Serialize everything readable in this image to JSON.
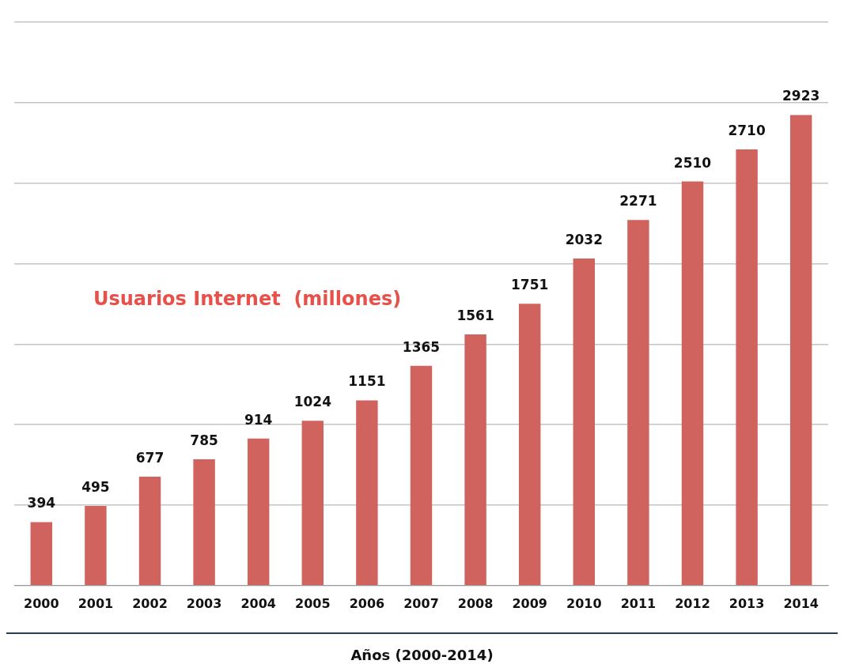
{
  "chart_data": {
    "type": "bar",
    "title": "Usuarios Internet  (millones)",
    "xlabel": "Años (2000-2014)",
    "categories": [
      "2000",
      "2001",
      "2002",
      "2003",
      "2004",
      "2005",
      "2006",
      "2007",
      "2008",
      "2009",
      "2010",
      "2011",
      "2012",
      "2013",
      "2014"
    ],
    "values": [
      394,
      495,
      677,
      785,
      914,
      1024,
      1151,
      1365,
      1561,
      1751,
      2032,
      2271,
      2510,
      2710,
      2923
    ],
    "color": "#d0635d",
    "ylim": [
      0,
      3500
    ],
    "yticks": [
      {
        "value": 0,
        "label": null
      },
      {
        "value": 500,
        "label": null
      },
      {
        "value": 1000,
        "label": null
      },
      {
        "value": 1500,
        "label": null
      },
      {
        "value": 2000,
        "label": null
      },
      {
        "value": 2500,
        "label": null
      },
      {
        "value": 3000,
        "label": null
      },
      {
        "value": 3500,
        "label": null
      }
    ],
    "grid": "y",
    "tick_labels": "x",
    "data_labels": true
  }
}
